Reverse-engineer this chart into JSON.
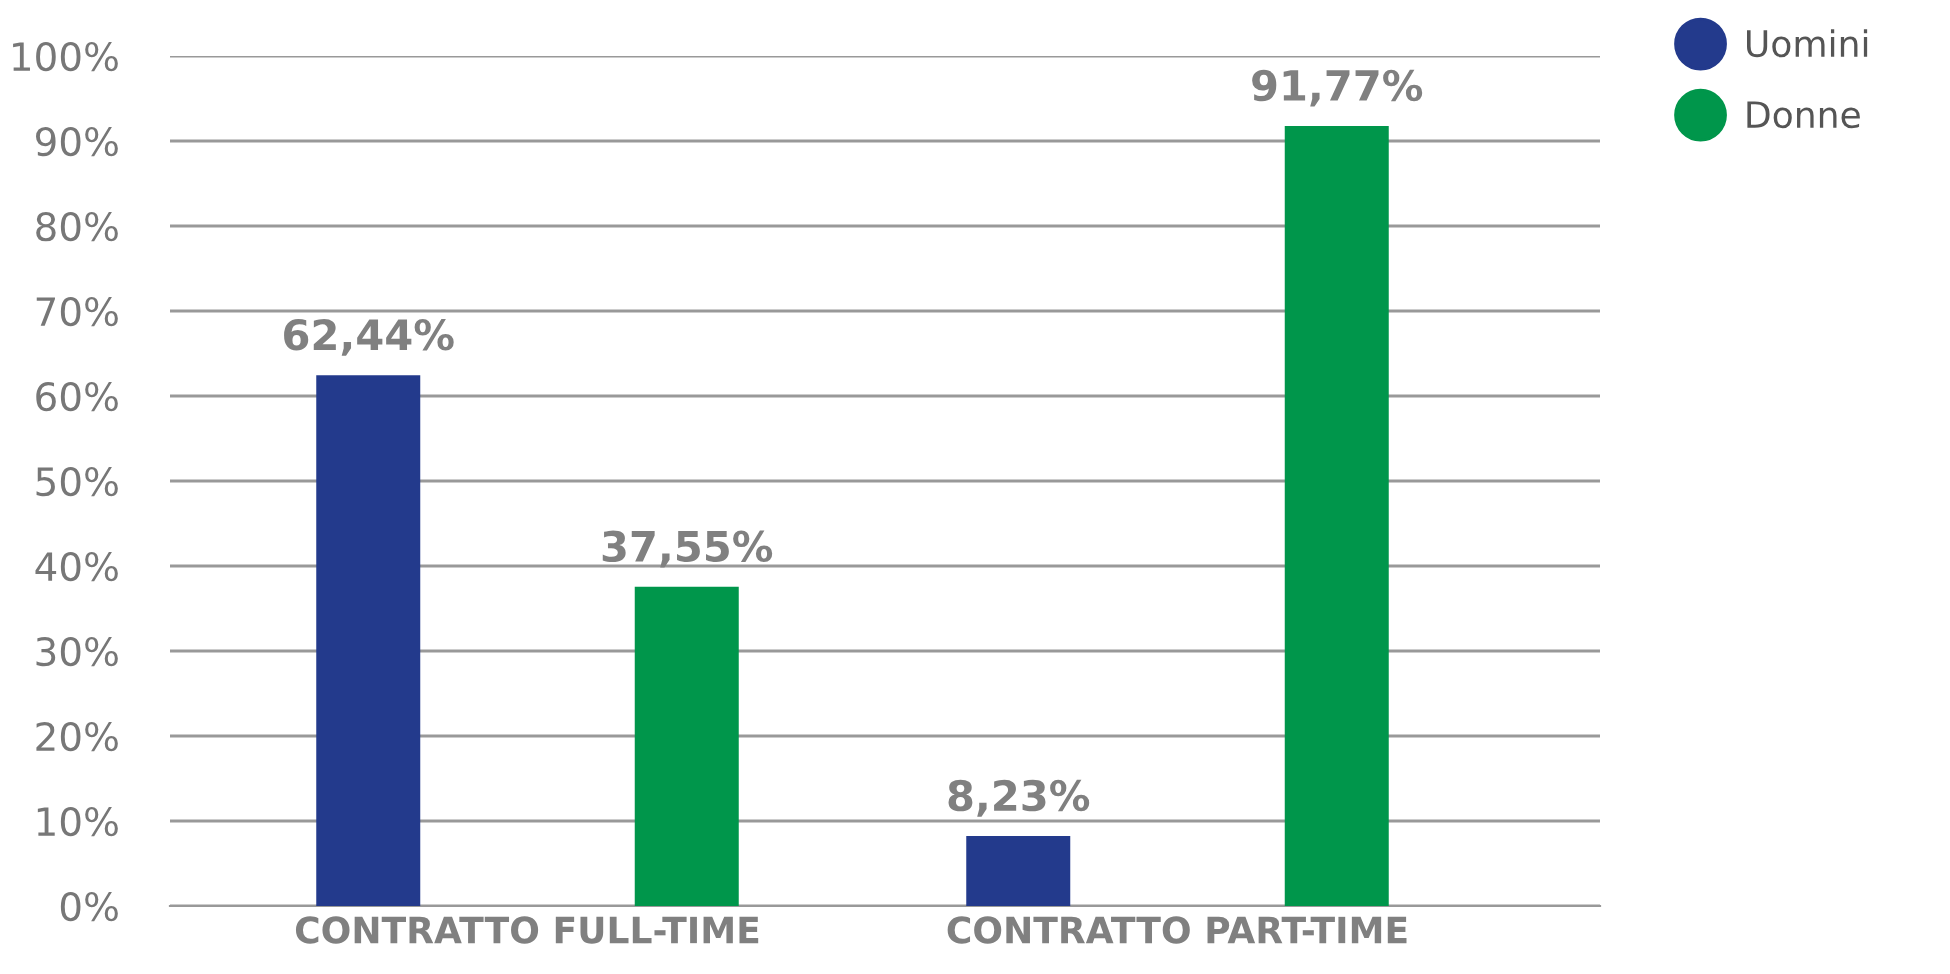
{
  "chart_data": {
    "type": "bar",
    "categories": [
      "CONTRATTO FULL-TIME",
      "CONTRATTO PART-TIME"
    ],
    "series": [
      {
        "name": "Uomini",
        "color": "#233a8c",
        "values": [
          62.44,
          8.23
        ],
        "value_labels": [
          "62,44%",
          "8,23%"
        ]
      },
      {
        "name": "Donne",
        "color": "#00964b",
        "values": [
          37.55,
          91.77
        ],
        "value_labels": [
          "37,55%",
          "91,77%"
        ]
      }
    ],
    "ylim": [
      0,
      100
    ],
    "yticks": [
      {
        "value": 0,
        "label": "0%"
      },
      {
        "value": 10,
        "label": "10%"
      },
      {
        "value": 20,
        "label": "20%"
      },
      {
        "value": 30,
        "label": "30%"
      },
      {
        "value": 40,
        "label": "40%"
      },
      {
        "value": 50,
        "label": "50%"
      },
      {
        "value": 60,
        "label": "60%"
      },
      {
        "value": 70,
        "label": "70%"
      },
      {
        "value": 80,
        "label": "80%"
      },
      {
        "value": 90,
        "label": "90%"
      },
      {
        "value": 100,
        "label": "100%"
      }
    ],
    "grid": "y",
    "legend": "top right"
  }
}
